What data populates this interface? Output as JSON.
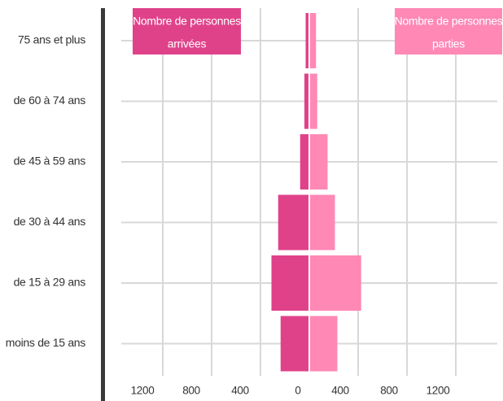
{
  "chart_data": {
    "type": "bar",
    "orientation": "horizontal-butterfly",
    "categories": [
      "75 ans et plus",
      "de 60 à 74 ans",
      "de 45 à 59 ans",
      "de 30 à 44 ans",
      "de 15 à 29 ans",
      "moins de 15 ans"
    ],
    "series": [
      {
        "name": "Nombre de personnes arrivées",
        "values": [
          30,
          40,
          75,
          255,
          310,
          235
        ],
        "color": "#e0428a",
        "side": "left"
      },
      {
        "name": "Nombre de personnes parties",
        "values": [
          55,
          65,
          150,
          210,
          425,
          230
        ],
        "color": "#ff88b5",
        "side": "right"
      }
    ],
    "legend": [
      {
        "line1": "Nombre de personnes",
        "line2": "arrivées",
        "color": "#e0428a",
        "placement": "top-left"
      },
      {
        "line1": "Nombre de personnes",
        "line2": "parties",
        "color": "#ff88b5",
        "placement": "top-right"
      }
    ],
    "x_ticks": [
      {
        "value": -1200,
        "label": "1200"
      },
      {
        "value": -800,
        "label": "800"
      },
      {
        "value": -400,
        "label": "400"
      },
      {
        "value": 0,
        "label": "0"
      },
      {
        "value": 400,
        "label": "400"
      },
      {
        "value": 800,
        "label": "800"
      },
      {
        "value": 1200,
        "label": "1200"
      }
    ],
    "xlim": [
      -1500,
      1500
    ],
    "grid": true
  }
}
